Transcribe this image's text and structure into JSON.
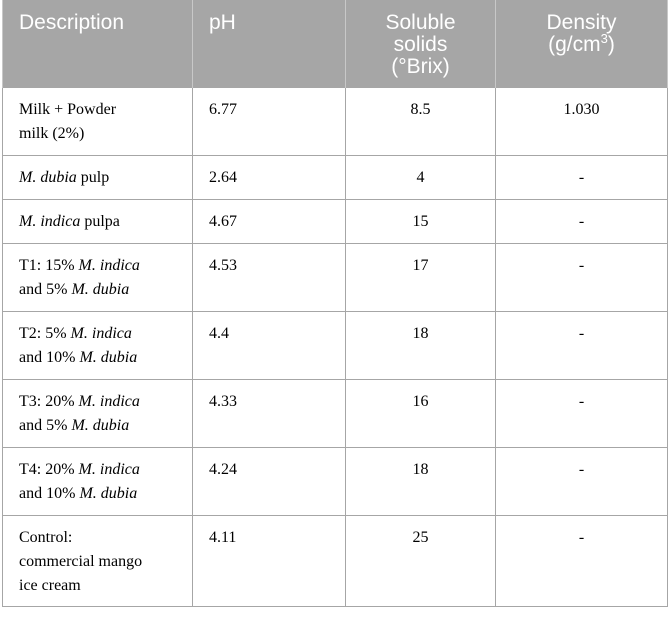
{
  "table": {
    "headers": {
      "description": "Description",
      "ph": "pH",
      "soluble_l1": "Soluble",
      "soluble_l2": "solids",
      "soluble_l3": "(°Brix)",
      "density_l1": "Density",
      "density_l2_pre": "(g/cm",
      "density_l2_sup": "3",
      "density_l2_post": ")"
    },
    "rows": [
      {
        "desc_parts": [
          "Milk + Powder",
          "milk (2%)"
        ],
        "ph": "6.77",
        "brix": "8.5",
        "density": "1.030"
      },
      {
        "desc_italic": "M. dubia",
        "desc_rest": " pulp",
        "ph": "2.64",
        "brix": "4",
        "density": "-"
      },
      {
        "desc_italic": "M. indica",
        "desc_rest": " pulpa",
        "ph": "4.67",
        "brix": "15",
        "density": "-"
      },
      {
        "l1_pre": "T1: 15% ",
        "l1_it": "M. indica",
        "l2_pre": "and 5% ",
        "l2_it": "M. dubia",
        "ph": "4.53",
        "brix": "17",
        "density": "-"
      },
      {
        "l1_pre": "T2: 5% ",
        "l1_it": "M. indica",
        "l2_pre": "and 10% ",
        "l2_it": "M. dubia",
        "ph": "4.4",
        "brix": "18",
        "density": "-"
      },
      {
        "l1_pre": "T3: 20% ",
        "l1_it": "M. indica",
        "l2_pre": "and 5% ",
        "l2_it": "M. dubia",
        "ph": "4.33",
        "brix": "16",
        "density": "-"
      },
      {
        "l1_pre": "T4: 20% ",
        "l1_it": "M. indica",
        "l2_pre": "and 10% ",
        "l2_it": "M. dubia",
        "ph": "4.24",
        "brix": "18",
        "density": "-"
      },
      {
        "desc_lines": [
          "Control:",
          "commercial mango",
          "ice cream"
        ],
        "ph": "4.11",
        "brix": "25",
        "density": "-"
      }
    ]
  }
}
